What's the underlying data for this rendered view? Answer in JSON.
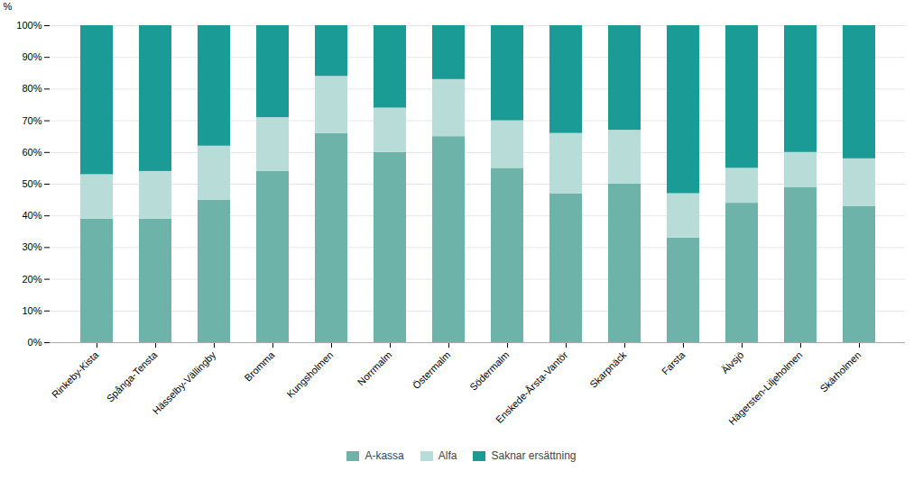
{
  "chart_data": {
    "type": "bar",
    "stacked": true,
    "categories": [
      "Rinkeby-Kista",
      "Spånga-Tensta",
      "Hässelby-Vällingby",
      "Bromma",
      "Kungsholmen",
      "Norrmalm",
      "Östermalm",
      "Södermalm",
      "Enskede-Årsta-Vantör",
      "Skarpnäck",
      "Farsta",
      "Älvsjö",
      "Hägersten-Liljeholmen",
      "Skärholmen"
    ],
    "series": [
      {
        "name": "A-kassa",
        "color": "#6db3aa",
        "values": [
          39,
          39,
          45,
          54,
          66,
          60,
          65,
          55,
          47,
          50,
          33,
          44,
          49,
          43
        ]
      },
      {
        "name": "Alfa",
        "color": "#b8ddd8",
        "values": [
          14,
          15,
          17,
          17,
          18,
          14,
          18,
          15,
          19,
          17,
          14,
          11,
          11,
          15
        ]
      },
      {
        "name": "Saknar ersättning",
        "color": "#1b9b96",
        "values": [
          47,
          46,
          38,
          29,
          16,
          26,
          17,
          30,
          34,
          33,
          53,
          45,
          40,
          42
        ]
      }
    ],
    "ylabel": "%",
    "ylim": [
      0,
      100
    ],
    "yticks": [
      {
        "value": 0,
        "label": "0%"
      },
      {
        "value": 10,
        "label": "10%"
      },
      {
        "value": 20,
        "label": "20%"
      },
      {
        "value": 30,
        "label": "30%"
      },
      {
        "value": 40,
        "label": "40%"
      },
      {
        "value": 50,
        "label": "50%"
      },
      {
        "value": 60,
        "label": "60%"
      },
      {
        "value": 70,
        "label": "70%"
      },
      {
        "value": 80,
        "label": "80%"
      },
      {
        "value": 90,
        "label": "90%"
      },
      {
        "value": 100,
        "label": "100%"
      }
    ],
    "grid": true,
    "legend": "bottom"
  }
}
